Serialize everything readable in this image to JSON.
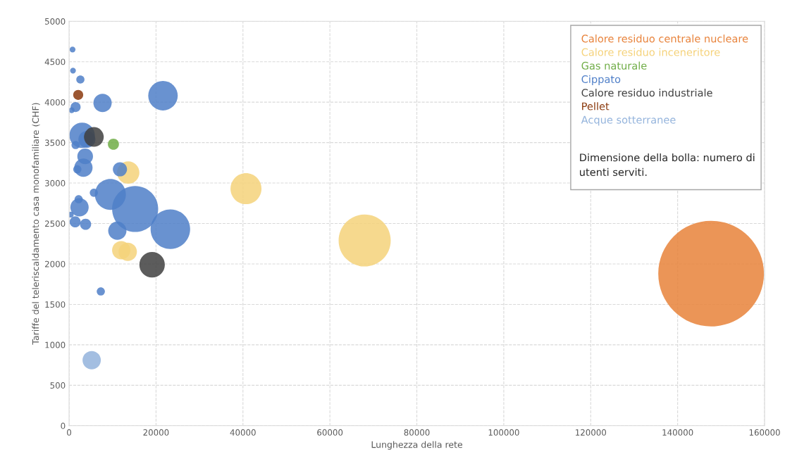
{
  "chart_data": {
    "type": "bubble",
    "xlabel": "Lunghezza della rete",
    "ylabel": "Tariffe del teleriscaldamento casa monofamiliare (CHF)",
    "xlim": [
      0,
      160000
    ],
    "xticks": [
      0,
      20000,
      40000,
      60000,
      80000,
      100000,
      120000,
      140000,
      160000
    ],
    "ylim": [
      0,
      5000
    ],
    "yticks": [
      0,
      500,
      1000,
      1500,
      2000,
      2500,
      3000,
      3500,
      4000,
      4500,
      5000
    ],
    "grid": true,
    "legend": "top right",
    "annotations": [
      "Dimensione della bolla: numero di utenti serviti."
    ],
    "series": [
      {
        "name": "Calore residuo centrale nucleare",
        "color": "#e8823a",
        "x": [
          147700
        ],
        "values": [
          1880
        ],
        "sizes": [
          1
        ]
      },
      {
        "name": "Calore residuo inceneritore",
        "color": "#f5d27a",
        "x": [
          68000,
          40700,
          13600,
          12000,
          13500
        ],
        "values": [
          2290,
          2930,
          3130,
          2170,
          2150
        ],
        "sizes": [
          0.243,
          0.086,
          0.045,
          0.03,
          0.03
        ]
      },
      {
        "name": "Gas naturale",
        "color": "#70ad47",
        "x": [
          10200
        ],
        "values": [
          3480
        ],
        "sizes": [
          0.011
        ]
      },
      {
        "name": "Cippato",
        "color": "#4f7fc8",
        "x": [
          800,
          900,
          2600,
          7700,
          21600,
          1500,
          600,
          3000,
          4100,
          1500,
          3700,
          3300,
          1900,
          11700,
          5700,
          9500,
          15200,
          2200,
          2400,
          400,
          1400,
          3800,
          23300,
          11100,
          7300
        ],
        "values": [
          4650,
          4390,
          4280,
          3990,
          4080,
          3940,
          3900,
          3590,
          3540,
          3470,
          3330,
          3190,
          3170,
          3170,
          2880,
          2860,
          2680,
          2800,
          2700,
          2610,
          2520,
          2490,
          2430,
          2410,
          1660
        ],
        "sizes": [
          0.003,
          0.003,
          0.006,
          0.03,
          0.078,
          0.009,
          0.003,
          0.058,
          0.026,
          0.006,
          0.022,
          0.03,
          0.006,
          0.018,
          0.006,
          0.086,
          0.19,
          0.006,
          0.03,
          0.003,
          0.011,
          0.011,
          0.14,
          0.03,
          0.006
        ]
      },
      {
        "name": "Calore residuo industriale",
        "color": "#404040",
        "x": [
          19100,
          5700
        ],
        "values": [
          1990,
          3570
        ],
        "sizes": [
          0.058,
          0.035
        ]
      },
      {
        "name": "Pellet",
        "color": "#8b3a0e",
        "x": [
          2100
        ],
        "values": [
          4090
        ],
        "sizes": [
          0.009
        ]
      },
      {
        "name": "Acque sotterranee",
        "color": "#93b3dc",
        "x": [
          5200
        ],
        "values": [
          810
        ],
        "sizes": [
          0.03
        ]
      }
    ]
  }
}
